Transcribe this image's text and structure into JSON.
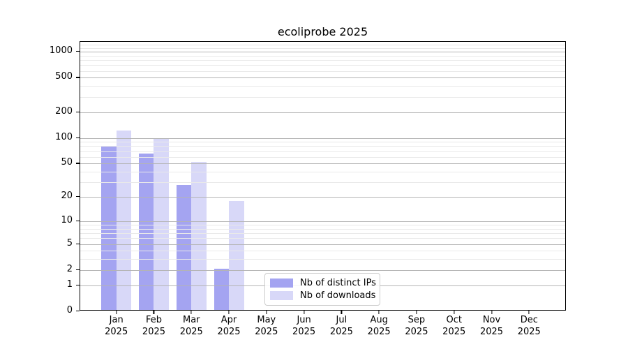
{
  "title": "ecoliprobe 2025",
  "colors": {
    "series_distinct_ips": "#a4a4f1",
    "series_downloads": "#d8d8f8",
    "major_grid": "#b4b4b4",
    "minor_grid": "#e9e9e9",
    "axis": "#000000",
    "background": "#ffffff",
    "legend_border": "#cccccc"
  },
  "chart_data": {
    "type": "bar",
    "title": "ecoliprobe 2025",
    "categories": [
      "Jan 2025",
      "Feb 2025",
      "Mar 2025",
      "Apr 2025",
      "May 2025",
      "Jun 2025",
      "Jul 2025",
      "Aug 2025",
      "Sep 2025",
      "Oct 2025",
      "Nov 2025",
      "Dec 2025"
    ],
    "series": [
      {
        "name": "Nb of distinct IPs",
        "color": "#a4a4f1",
        "values": [
          78,
          63,
          27,
          2,
          0,
          0,
          0,
          0,
          0,
          0,
          0,
          0
        ]
      },
      {
        "name": "Nb of downloads",
        "color": "#d8d8f8",
        "values": [
          117,
          95,
          50,
          17,
          0,
          0,
          0,
          0,
          0,
          0,
          0,
          0
        ]
      }
    ],
    "xlabel": "",
    "ylabel": "",
    "yscale": "log1p",
    "ylim": [
      0,
      1300
    ],
    "yticks": [
      0,
      1,
      2,
      5,
      10,
      20,
      50,
      100,
      200,
      500,
      1000
    ],
    "minor_yticks": [
      3,
      4,
      6,
      7,
      8,
      9,
      30,
      40,
      60,
      70,
      80,
      90,
      300,
      400,
      600,
      700,
      800,
      900,
      1100,
      1200
    ],
    "grid": true,
    "legend_position": "lower center"
  }
}
